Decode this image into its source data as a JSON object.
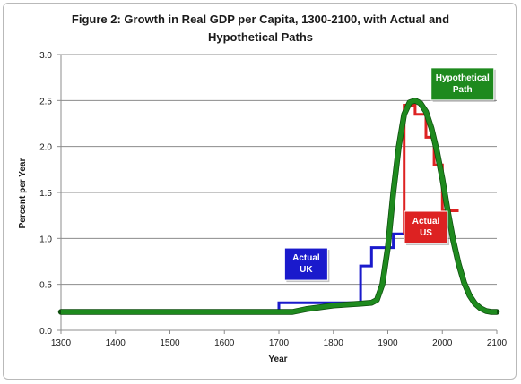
{
  "chart_data": {
    "type": "line",
    "title_line1": "Figure 2: Growth in Real GDP per Capita, 1300-2100, with Actual and",
    "title_line2": "Hypothetical Paths",
    "xlabel": "Year",
    "ylabel": "Percent per Year",
    "xlim": [
      1300,
      2100
    ],
    "ylim": [
      0,
      3
    ],
    "x_ticks": [
      "1300",
      "1400",
      "1500",
      "1600",
      "1700",
      "1800",
      "1900",
      "2000",
      "2100"
    ],
    "y_ticks": [
      "0.0",
      "0.5",
      "1.0",
      "1.5",
      "2.0",
      "2.5",
      "3.0"
    ],
    "grid": true,
    "series": [
      {
        "name": "Actual UK",
        "label_lines": [
          "Actual",
          "UK"
        ],
        "color": "#1a1acc",
        "step": true,
        "points": [
          [
            1300,
            0.2
          ],
          [
            1700,
            0.2
          ],
          [
            1700,
            0.3
          ],
          [
            1850,
            0.3
          ],
          [
            1850,
            0.7
          ],
          [
            1870,
            0.7
          ],
          [
            1870,
            0.9
          ],
          [
            1910,
            0.9
          ],
          [
            1910,
            1.05
          ],
          [
            1930,
            1.05
          ]
        ]
      },
      {
        "name": "Actual US",
        "label_lines": [
          "Actual",
          "US"
        ],
        "color": "#dd2222",
        "step": true,
        "points": [
          [
            1930,
            1.05
          ],
          [
            1930,
            2.45
          ],
          [
            1950,
            2.45
          ],
          [
            1950,
            2.35
          ],
          [
            1970,
            2.35
          ],
          [
            1970,
            2.1
          ],
          [
            1985,
            2.1
          ],
          [
            1985,
            1.8
          ],
          [
            2000,
            1.8
          ],
          [
            2000,
            1.3
          ],
          [
            2030,
            1.3
          ]
        ]
      },
      {
        "name": "Hypothetical Path",
        "label_lines": [
          "Hypothetical",
          "Path"
        ],
        "color": "#1e8a1e",
        "step": false,
        "points": [
          [
            1300,
            0.2
          ],
          [
            1725,
            0.2
          ],
          [
            1750,
            0.23
          ],
          [
            1800,
            0.27
          ],
          [
            1850,
            0.29
          ],
          [
            1870,
            0.3
          ],
          [
            1880,
            0.33
          ],
          [
            1890,
            0.5
          ],
          [
            1900,
            0.9
          ],
          [
            1910,
            1.5
          ],
          [
            1920,
            2.0
          ],
          [
            1930,
            2.35
          ],
          [
            1940,
            2.48
          ],
          [
            1950,
            2.5
          ],
          [
            1960,
            2.47
          ],
          [
            1970,
            2.38
          ],
          [
            1980,
            2.2
          ],
          [
            1990,
            1.95
          ],
          [
            2000,
            1.65
          ],
          [
            2010,
            1.3
          ],
          [
            2020,
            0.98
          ],
          [
            2030,
            0.72
          ],
          [
            2040,
            0.52
          ],
          [
            2050,
            0.38
          ],
          [
            2060,
            0.29
          ],
          [
            2070,
            0.24
          ],
          [
            2080,
            0.21
          ],
          [
            2090,
            0.2
          ],
          [
            2100,
            0.2
          ]
        ]
      }
    ]
  }
}
